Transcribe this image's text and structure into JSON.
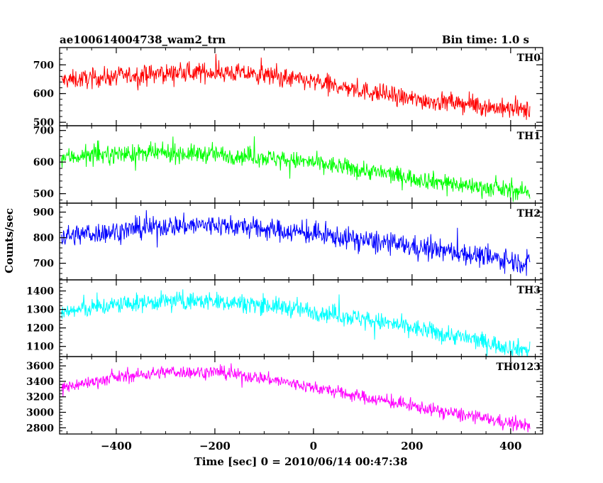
{
  "chart_data": {
    "type": "line",
    "title": "ae100614004738_wam2_trn",
    "bin_time": "Bin time: 1.0 s",
    "xlabel": "Time [sec] 0 = 2010/06/14 00:47:38",
    "ylabel": "Counts/sec",
    "xlim": [
      -515,
      465
    ],
    "x_ticks": [
      -400,
      -200,
      0,
      200,
      400
    ],
    "x_tick_labels": [
      "−400",
      "−200",
      "0",
      "200",
      "400"
    ],
    "grid": false,
    "x_range_data": [
      -511,
      439
    ],
    "panels": [
      {
        "name": "TH0",
        "color": "#ff0000",
        "ylim": [
          488,
          760
        ],
        "yticks": [
          500,
          600,
          700
        ],
        "trend_x": [
          -511,
          -400,
          -300,
          -200,
          -100,
          0,
          100,
          200,
          300,
          400,
          439
        ],
        "trend_y": [
          645,
          660,
          670,
          675,
          665,
          640,
          610,
          580,
          565,
          545,
          540
        ],
        "noise": 30
      },
      {
        "name": "TH1",
        "color": "#00ff00",
        "ylim": [
          470,
          715
        ],
        "yticks": [
          500,
          600,
          700
        ],
        "trend_x": [
          -511,
          -400,
          -300,
          -200,
          -100,
          0,
          100,
          200,
          300,
          400,
          439
        ],
        "trend_y": [
          615,
          625,
          628,
          625,
          615,
          598,
          575,
          550,
          528,
          510,
          505
        ],
        "noise": 26
      },
      {
        "name": "TH2",
        "color": "#0000ff",
        "ylim": [
          635,
          935
        ],
        "yticks": [
          700,
          800,
          900
        ],
        "trend_x": [
          -511,
          -400,
          -300,
          -200,
          -100,
          0,
          100,
          200,
          300,
          400,
          439
        ],
        "trend_y": [
          805,
          825,
          845,
          850,
          835,
          815,
          790,
          765,
          740,
          710,
          700
        ],
        "noise": 38
      },
      {
        "name": "TH3",
        "color": "#00ffff",
        "ylim": [
          1045,
          1460
        ],
        "yticks": [
          1100,
          1200,
          1300,
          1400
        ],
        "trend_x": [
          -511,
          -400,
          -300,
          -200,
          -100,
          0,
          100,
          200,
          300,
          400,
          439
        ],
        "trend_y": [
          1285,
          1325,
          1345,
          1345,
          1325,
          1290,
          1250,
          1200,
          1150,
          1095,
          1080
        ],
        "noise": 45
      },
      {
        "name": "TH0123",
        "color": "#ff00ff",
        "ylim": [
          2720,
          3720
        ],
        "yticks": [
          2800,
          3000,
          3200,
          3400,
          3600
        ],
        "trend_x": [
          -511,
          -400,
          -300,
          -200,
          -100,
          0,
          100,
          200,
          300,
          400,
          439
        ],
        "trend_y": [
          3320,
          3450,
          3520,
          3520,
          3440,
          3320,
          3200,
          3080,
          2970,
          2860,
          2820
        ],
        "noise": 75
      }
    ]
  }
}
